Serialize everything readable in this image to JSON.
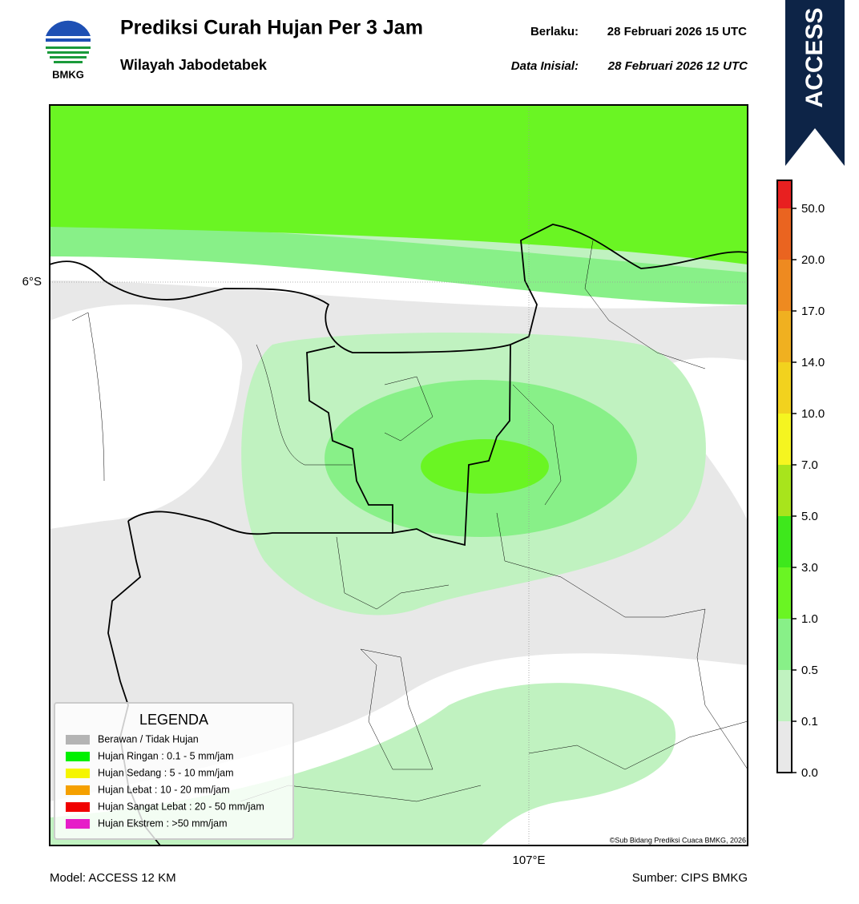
{
  "header": {
    "logo_text": "BMKG",
    "title": "Prediksi Curah Hujan Per 3 Jam",
    "subtitle": "Wilayah Jabodetabek",
    "valid_label": "Berlaku:",
    "valid_time": "28 Februari 2026 15 UTC",
    "init_label": "Data Inisial:",
    "init_time": "28 Februari 2026 12 UTC",
    "model_badge": "ACCESS"
  },
  "map": {
    "lat_label": "6°S",
    "lon_label": "107°E",
    "credit": "©Sub Bidang Prediksi Cuaca BMKG, 2026"
  },
  "legend": {
    "title": "LEGENDA",
    "items": [
      {
        "label": "Berawan / Tidak Hujan",
        "color": "#b4b4b4"
      },
      {
        "label": "Hujan Ringan : 0.1 - 5 mm/jam",
        "color": "#00f000"
      },
      {
        "label": "Hujan Sedang : 5 - 10 mm/jam",
        "color": "#f5f500"
      },
      {
        "label": "Hujan Lebat : 10 - 20 mm/jam",
        "color": "#f5a000"
      },
      {
        "label": "Hujan Sangat Lebat : 20 - 50 mm/jam",
        "color": "#f00000"
      },
      {
        "label": "Hujan Ekstrem : >50 mm/jam",
        "color": "#e61ec8"
      }
    ]
  },
  "colorbar": {
    "colors": [
      "#e8e8e8",
      "#c0f2c0",
      "#88f088",
      "#6af523",
      "#3ee81c",
      "#a8e41c",
      "#f5f520",
      "#f2d21e",
      "#f0b020",
      "#ee8a20",
      "#ea6420",
      "#e82020",
      "#e020c0"
    ],
    "ticks": [
      {
        "value": 0,
        "label": "0.0"
      },
      0.1,
      0.5,
      {
        "value": 1,
        "label": "1.0"
      },
      {
        "value": 3,
        "label": "3.0"
      },
      {
        "value": 5,
        "label": "5.0"
      },
      {
        "value": 7,
        "label": "7.0"
      },
      {
        "value": 10,
        "label": "10.0"
      },
      {
        "value": 14,
        "label": "14.0"
      },
      {
        "value": 17,
        "label": "17.0"
      },
      {
        "value": 20,
        "label": "20.0"
      },
      {
        "value": 50,
        "label": "50.0"
      }
    ]
  },
  "footer": {
    "model": "Model: ACCESS 12 KM",
    "source": "Sumber: CIPS BMKG"
  }
}
